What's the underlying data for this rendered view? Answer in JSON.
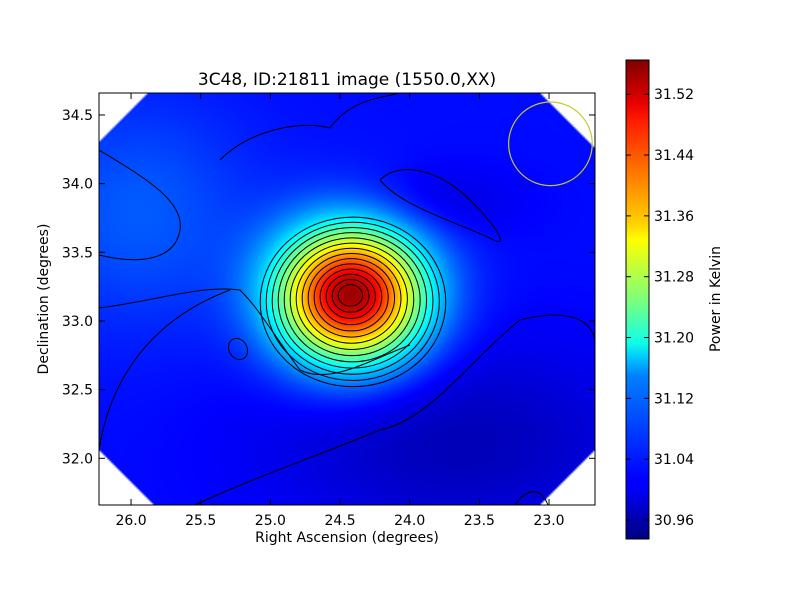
{
  "chart_data": {
    "type": "heatmap",
    "title": "3C48, ID:21811 image (1550.0,XX)",
    "xlabel": "Right Ascension (degrees)",
    "ylabel": "Declination (degrees)",
    "colorbar_label": "Power in Kelvin",
    "colormap": "jet",
    "xlim": [
      26.23,
      22.67
    ],
    "ylim": [
      31.66,
      34.66
    ],
    "clim": [
      30.935,
      31.565
    ],
    "x_ticks": [
      26.0,
      25.5,
      25.0,
      24.5,
      24.0,
      23.5,
      23.0
    ],
    "x_tick_labels": [
      "26.0",
      "25.5",
      "25.0",
      "24.5",
      "24.0",
      "23.5",
      "23.0"
    ],
    "y_ticks": [
      32.0,
      32.5,
      33.0,
      33.5,
      34.0,
      34.5
    ],
    "y_tick_labels": [
      "32.0",
      "32.5",
      "33.0",
      "33.5",
      "34.0",
      "34.5"
    ],
    "colorbar_ticks": [
      30.96,
      31.04,
      31.12,
      31.2,
      31.28,
      31.36,
      31.44,
      31.52
    ],
    "colorbar_tick_labels": [
      "30.96",
      "31.04",
      "31.12",
      "31.20",
      "31.28",
      "31.36",
      "31.44",
      "31.52"
    ],
    "peak": {
      "ra": 24.42,
      "dec": 33.19,
      "value": 31.56
    },
    "background_level": 31.02,
    "contours": true,
    "beam_circle": {
      "ra": 22.99,
      "dec": 34.29,
      "radius_deg": 0.3,
      "color": "#c8c832"
    }
  }
}
